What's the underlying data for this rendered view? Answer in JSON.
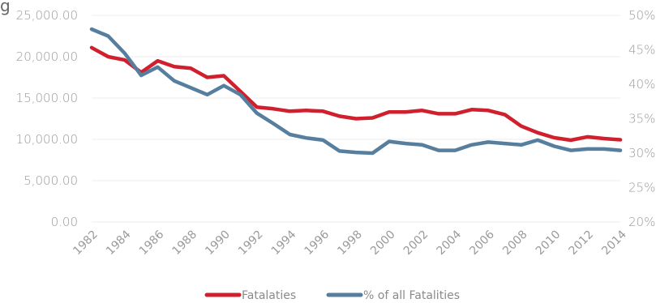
{
  "chart_data": {
    "type": "line",
    "title_fragment": "g",
    "x": [
      1982,
      1983,
      1984,
      1985,
      1986,
      1987,
      1988,
      1989,
      1990,
      1991,
      1992,
      1993,
      1994,
      1995,
      1996,
      1997,
      1998,
      1999,
      2000,
      2001,
      2002,
      2003,
      2004,
      2005,
      2006,
      2007,
      2008,
      2009,
      2010,
      2011,
      2012,
      2013,
      2014
    ],
    "x_tick_labels": [
      "1982",
      "1984",
      "1986",
      "1988",
      "1990",
      "1992",
      "1994",
      "1996",
      "1998",
      "2000",
      "2002",
      "2004",
      "2006",
      "2008",
      "2010",
      "2012",
      "2014"
    ],
    "y_left_ticks": [
      "0.00",
      "5,000.00",
      "10,000.00",
      "15,000.00",
      "20,000.00",
      "25,000.00"
    ],
    "y_left_range": [
      0,
      25000
    ],
    "y_right_ticks": [
      "20%",
      "25%",
      "30%",
      "35%",
      "40%",
      "45%",
      "50%"
    ],
    "y_right_range": [
      20,
      50
    ],
    "grid": "horizontal",
    "legend_position": "bottom-center",
    "series": [
      {
        "name": "Fatalaties",
        "axis": "left",
        "color": "#d0202e",
        "values": [
          21100,
          20000,
          19600,
          18100,
          19500,
          18800,
          18600,
          17500,
          17700,
          15800,
          13900,
          13700,
          13400,
          13500,
          13400,
          12800,
          12500,
          12600,
          13300,
          13300,
          13500,
          13100,
          13100,
          13600,
          13500,
          13000,
          11600,
          10800,
          10200,
          9900,
          10300,
          10100,
          9950
        ]
      },
      {
        "name": "% of all Fatalities",
        "axis": "right",
        "color": "#567e9f",
        "values": [
          48.0,
          47.0,
          44.5,
          41.3,
          42.5,
          40.5,
          39.5,
          38.5,
          39.8,
          38.5,
          35.8,
          34.3,
          32.7,
          32.2,
          31.9,
          30.3,
          30.1,
          30.0,
          31.7,
          31.4,
          31.2,
          30.4,
          30.4,
          31.2,
          31.6,
          31.4,
          31.2,
          31.9,
          31.0,
          30.4,
          30.6,
          30.6,
          30.4
        ]
      }
    ]
  }
}
